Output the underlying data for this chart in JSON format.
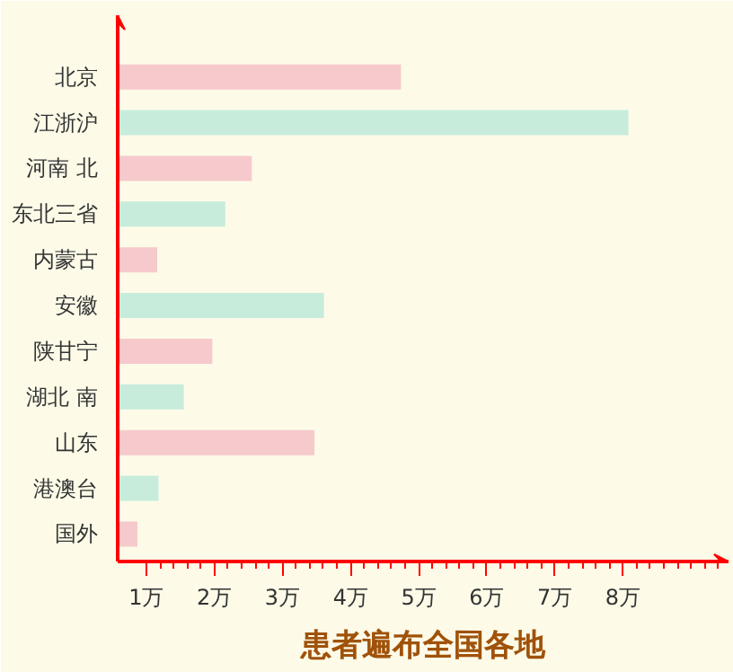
{
  "chart_data": {
    "type": "bar",
    "orientation": "horizontal",
    "title": "患者遍布全国各地",
    "categories": [
      "北京",
      "江浙沪",
      "河南 北",
      "东北三省",
      "内蒙古",
      "安徽",
      "陕甘宁",
      "湖北 南",
      "山东",
      "港澳台",
      "国外"
    ],
    "values": [
      4.74,
      8.08,
      2.55,
      2.16,
      1.16,
      3.61,
      1.97,
      1.55,
      3.47,
      1.18,
      0.87
    ],
    "colors": [
      "#f6c9cc",
      "#c8ecdc",
      "#f6c9cc",
      "#c8ecdc",
      "#f6c9cc",
      "#c8ecdc",
      "#f6c9cc",
      "#c8ecdc",
      "#f6c9cc",
      "#c8ecdc",
      "#f6c9cc"
    ],
    "xlim": [
      0.58,
      9.55
    ],
    "xticks": [
      {
        "value": 1,
        "label": "1万"
      },
      {
        "value": 2,
        "label": "2万"
      },
      {
        "value": 3,
        "label": "3万"
      },
      {
        "value": 4,
        "label": "4万"
      },
      {
        "value": 5,
        "label": "5万"
      },
      {
        "value": 6,
        "label": "6万"
      },
      {
        "value": 7,
        "label": "7万"
      },
      {
        "value": 8,
        "label": "8万"
      }
    ],
    "grid": false
  }
}
